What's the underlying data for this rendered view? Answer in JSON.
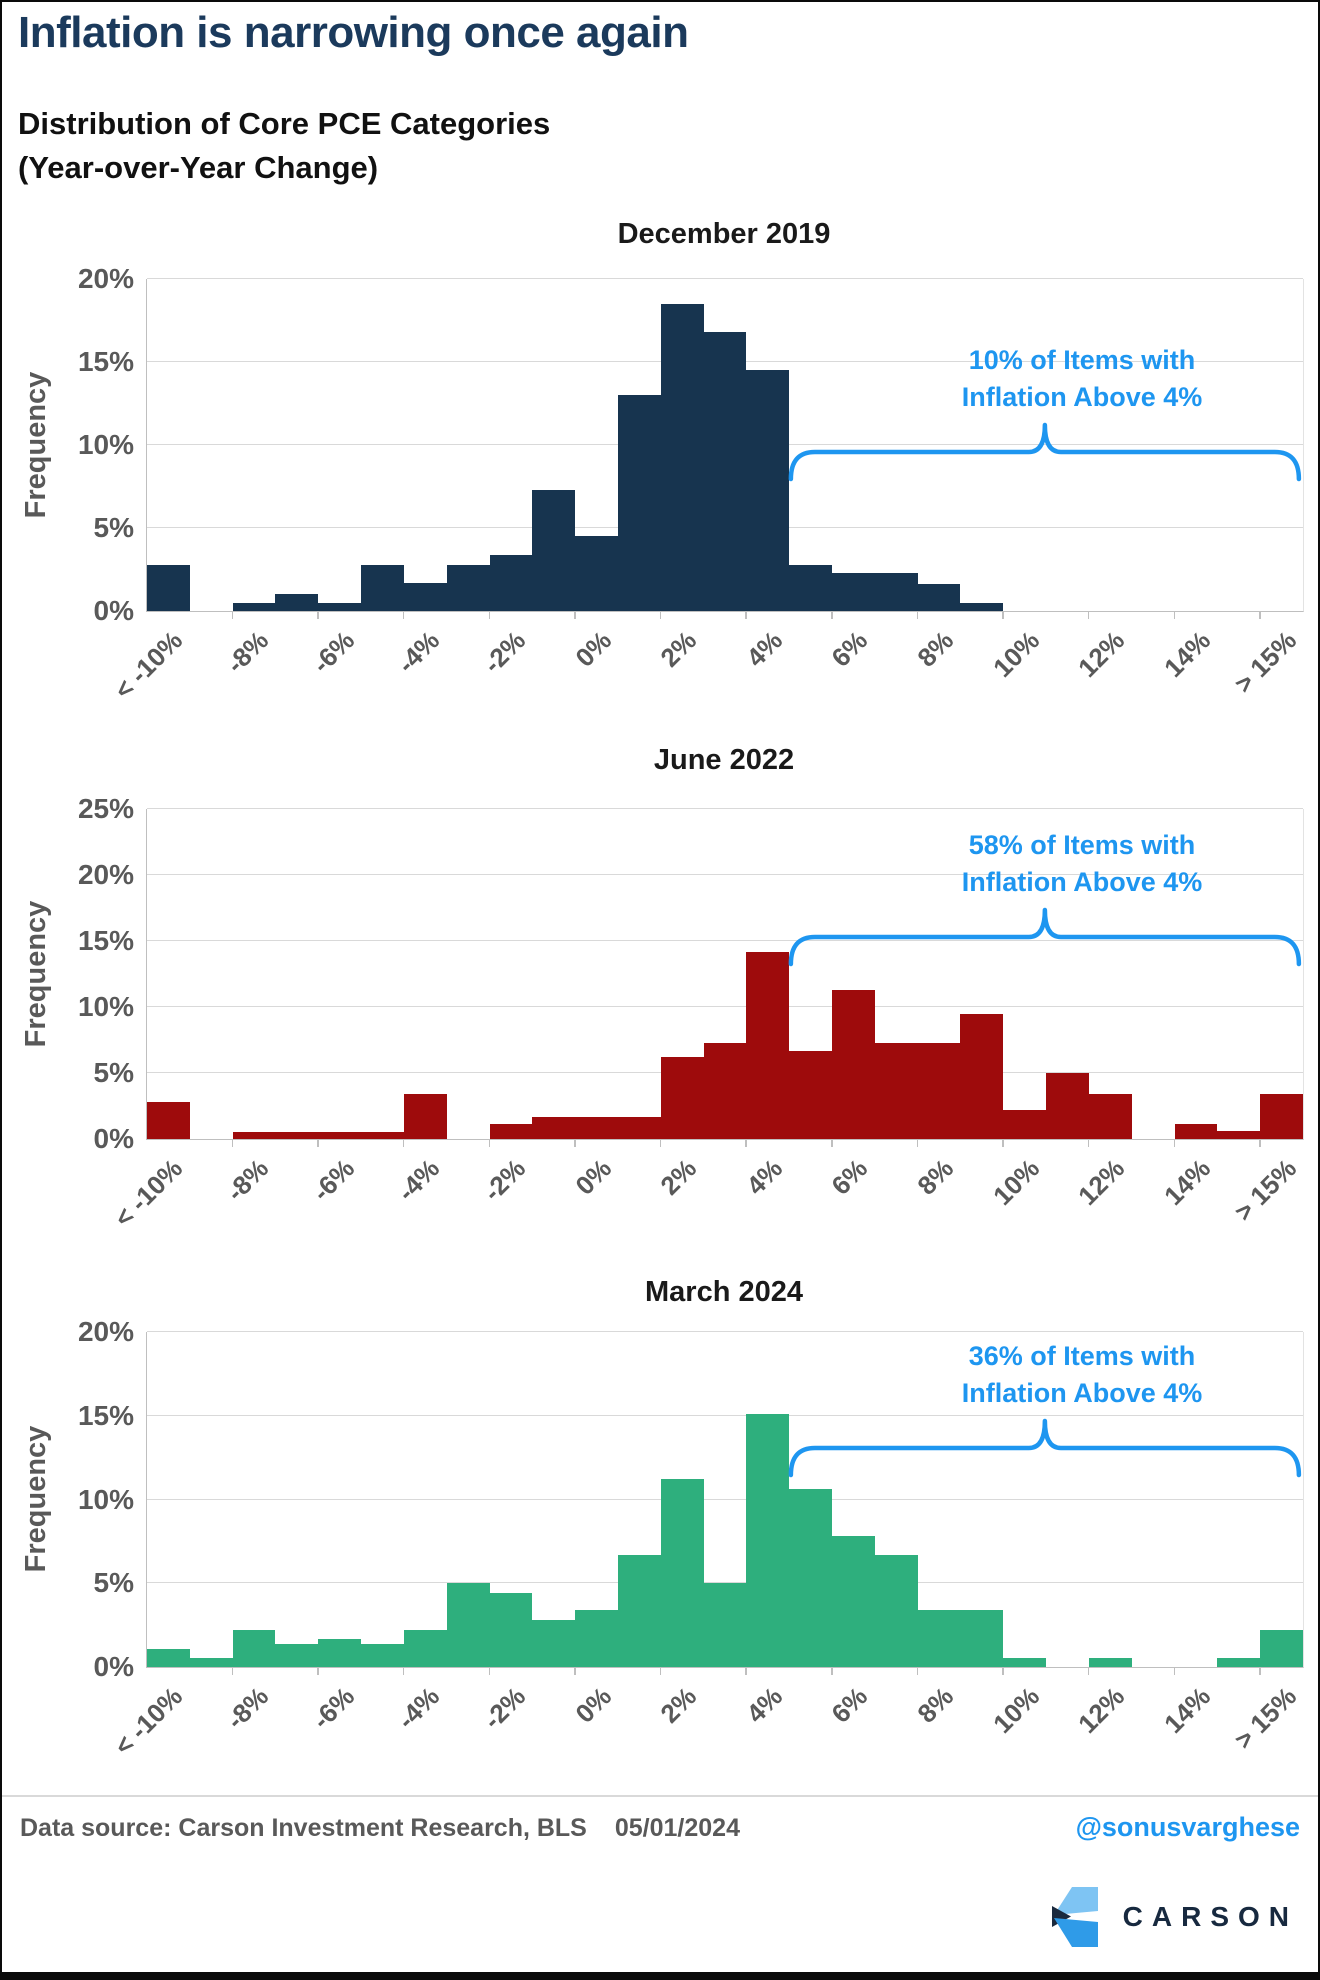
{
  "page": {
    "title": "Inflation is narrowing once again",
    "subtitle_line1": "Distribution of Core PCE Categories",
    "subtitle_line2": "(Year-over-Year Change)"
  },
  "footer": {
    "source_text": "Data source: Carson Investment Research, BLS",
    "date": "05/01/2024",
    "handle": "@sonusvarghese",
    "logo_text": "CARSON"
  },
  "colors": {
    "title_navy": "#1b3a5c",
    "annotation_blue": "#1e96f0",
    "axis_gray": "#595959",
    "gridline": "#d9d9d9",
    "dec2019_bars": "#17344f",
    "jun2022_bars": "#9e0b0c",
    "mar2024_bars": "#2eaf7d",
    "logo_light_blue": "#7ec4f3",
    "logo_mid_blue": "#2f9be8",
    "logo_dark_navy": "#1b2a3e",
    "logo_word_navy": "#17293f"
  },
  "chart_data": [
    {
      "type": "bar",
      "title": "December 2019",
      "xlabel": "",
      "ylabel": "Frequency",
      "ylim": [
        0,
        20
      ],
      "ytick_step": 5,
      "y_tick_labels": [
        "20%",
        "15%",
        "10%",
        "5%",
        "0%"
      ],
      "x_tick_labels": [
        "< -10%",
        "-8%",
        "-6%",
        "-4%",
        "-2%",
        "0%",
        "2%",
        "4%",
        "6%",
        "8%",
        "10%",
        "12%",
        "14%",
        "> 15%"
      ],
      "bin_width_pct": 1,
      "color_key": "dec2019_bars",
      "values": [
        2.8,
        0,
        0.5,
        1.0,
        0.5,
        2.8,
        1.7,
        2.8,
        3.4,
        7.3,
        4.5,
        13.0,
        18.5,
        16.8,
        14.5,
        2.8,
        2.3,
        2.3,
        1.6,
        0.5,
        0,
        0,
        0,
        0,
        0,
        0,
        0
      ],
      "grid": true,
      "legend": "none",
      "annotation": {
        "line1": "10% of Items with",
        "line2": "Inflation Above 4%"
      }
    },
    {
      "type": "bar",
      "title": "June 2022",
      "xlabel": "",
      "ylabel": "Frequency",
      "ylim": [
        0,
        25
      ],
      "ytick_step": 5,
      "y_tick_labels": [
        "25%",
        "20%",
        "15%",
        "10%",
        "5%",
        "0%"
      ],
      "x_tick_labels": [
        "< -10%",
        "-8%",
        "-6%",
        "-4%",
        "-2%",
        "0%",
        "2%",
        "4%",
        "6%",
        "8%",
        "10%",
        "12%",
        "14%",
        "> 15%"
      ],
      "bin_width_pct": 1,
      "color_key": "jun2022_bars",
      "values": [
        2.8,
        0,
        0.5,
        0.5,
        0.5,
        0.5,
        3.4,
        0,
        1.1,
        1.7,
        1.7,
        1.7,
        6.2,
        7.3,
        14.2,
        6.7,
        11.3,
        7.3,
        7.3,
        9.5,
        2.2,
        5.0,
        3.4,
        0,
        1.1,
        0.6,
        3.4
      ],
      "grid": true,
      "legend": "none",
      "annotation": {
        "line1": "58% of Items with",
        "line2": "Inflation Above 4%"
      }
    },
    {
      "type": "bar",
      "title": "March 2024",
      "xlabel": "",
      "ylabel": "Frequency",
      "ylim": [
        0,
        20
      ],
      "ytick_step": 5,
      "y_tick_labels": [
        "20%",
        "15%",
        "10%",
        "5%",
        "0%"
      ],
      "x_tick_labels": [
        "< -10%",
        "-8%",
        "-6%",
        "-4%",
        "-2%",
        "0%",
        "2%",
        "4%",
        "6%",
        "8%",
        "10%",
        "12%",
        "14%",
        "> 15%"
      ],
      "bin_width_pct": 1,
      "color_key": "mar2024_bars",
      "values": [
        1.1,
        0.55,
        2.2,
        1.4,
        1.7,
        1.4,
        2.2,
        5.0,
        4.4,
        2.8,
        3.4,
        6.7,
        11.2,
        5.0,
        15.1,
        10.6,
        7.8,
        6.7,
        3.4,
        3.4,
        0.55,
        0,
        0.55,
        0,
        0,
        0.55,
        2.2
      ],
      "grid": true,
      "legend": "none",
      "annotation": {
        "line1": "36% of Items with",
        "line2": "Inflation Above 4%"
      }
    }
  ]
}
